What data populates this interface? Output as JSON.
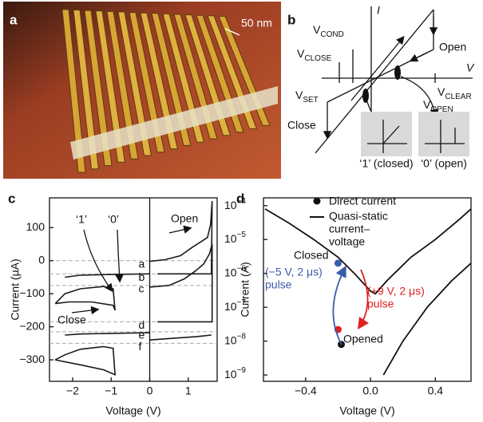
{
  "panel_a": {
    "label": "a",
    "scale": "50 nm"
  },
  "panel_b": {
    "label": "b",
    "axis_i": "I",
    "axis_v": "V",
    "v_cond": {
      "main": "V",
      "sub": "COND"
    },
    "v_close": {
      "main": "V",
      "sub": "CLOSE"
    },
    "v_set": {
      "main": "V",
      "sub": "SET"
    },
    "v_clear": {
      "main": "V",
      "sub": "CLEAR"
    },
    "v_open": {
      "main": "V",
      "sub": "OPEN"
    },
    "open": "Open",
    "close": "Close",
    "inset_1": "‘1’ (closed)",
    "inset_0": "‘0’ (open)"
  },
  "chart_data": [
    {
      "type": "line",
      "panel": "c",
      "xlabel": "Voltage (V)",
      "ylabel": "Current (μA)",
      "xlim": [
        -2.6,
        1.75
      ],
      "ylim": [
        -365,
        190
      ],
      "xticks": [
        {
          "value": -2,
          "label": "−2"
        },
        {
          "value": -1,
          "label": "−1"
        },
        0,
        1
      ],
      "yticks": [
        100,
        0,
        {
          "value": -100,
          "label": "−100"
        },
        {
          "value": -200,
          "label": "−200"
        },
        {
          "value": -300,
          "label": "−300"
        }
      ],
      "reference_lines": {
        "values": [
          0,
          -40,
          -75,
          -185,
          -215,
          -250
        ],
        "labels": [
          "a",
          "b",
          "c",
          "d",
          "e",
          "f"
        ]
      },
      "annotations": [
        "‘1’",
        "‘0’",
        "Open",
        "Close"
      ],
      "series": [
        {
          "color": "#1a1a1a",
          "x": [
            -2.2,
            -1.8,
            -1.0,
            0
          ],
          "values": [
            -50,
            -44,
            -42,
            -40
          ]
        },
        {
          "color": "#1a1a1a",
          "x": [
            -2.45,
            -2.2,
            -1.8,
            -1.2,
            -0.95,
            -0.9,
            -0.95,
            -1.5,
            -2.1,
            -2.45
          ],
          "values": [
            -130,
            -100,
            -85,
            -78,
            -85,
            -150,
            -135,
            -125,
            -125,
            -130
          ]
        },
        {
          "color": "#1a1a1a",
          "x": [
            -2.2,
            -1.8,
            -1.0,
            0
          ],
          "values": [
            -225,
            -222,
            -220,
            -218
          ]
        },
        {
          "color": "#1a1a1a",
          "x": [
            -2.45,
            -2.2,
            -1.8,
            -1.2,
            -0.95,
            -0.9,
            -1.2,
            -1.8,
            -2.45
          ],
          "values": [
            -300,
            -285,
            -268,
            -260,
            -265,
            -345,
            -330,
            -315,
            -300
          ]
        },
        {
          "color": "#1a1a1a",
          "x": [
            0,
            0.4,
            0.8,
            1.1,
            1.3,
            1.5,
            1.58,
            1.62,
            1.6,
            1.0,
            0.2
          ],
          "values": [
            -2,
            3,
            15,
            40,
            55,
            70,
            110,
            180,
            -40,
            -40,
            -40
          ]
        },
        {
          "color": "#1a1a1a",
          "x": [
            0,
            0.5,
            0.9,
            1.2,
            1.4,
            1.55,
            1.62,
            1.62,
            0.8,
            0.2
          ],
          "values": [
            -80,
            -75,
            -55,
            -30,
            -10,
            20,
            50,
            -185,
            -185,
            -185
          ]
        },
        {
          "color": "#1a1a1a",
          "x": [
            0,
            0.6,
            1.2,
            1.6
          ],
          "values": [
            -240,
            -235,
            -230,
            -225
          ]
        }
      ]
    },
    {
      "type": "scatter",
      "panel": "d",
      "xlabel": "Voltage (V)",
      "ylabel": "Current (A)",
      "log_y": true,
      "xlim": [
        -0.66,
        0.62
      ],
      "ylim": [
        6.5e-10,
        0.00017
      ],
      "xticks": [
        {
          "value": -0.4,
          "label": "−0.4"
        },
        {
          "value": 0,
          "label": "0.0"
        },
        0.4
      ],
      "yticks": [
        {
          "value": 0.0001,
          "label": "10",
          "exp": "−4"
        },
        {
          "value": 1e-05,
          "label": "10",
          "exp": "−5"
        },
        {
          "value": 1e-06,
          "label": "10",
          "exp": "−6"
        },
        {
          "value": 1e-07,
          "label": "10",
          "exp": "−7"
        },
        {
          "value": 1e-08,
          "label": "10",
          "exp": "−8"
        },
        {
          "value": 1e-09,
          "label": "10",
          "exp": "−9"
        }
      ],
      "annotations": {
        "closed": "Closed",
        "opened": "Opened",
        "pulse_neg": [
          "(−5 V, 2 μs)",
          "pulse"
        ],
        "pulse_pos": [
          "(+9 V, 2 μs)",
          "pulse"
        ]
      },
      "series": [
        {
          "name": "Direct current",
          "type": "scatter",
          "x": [
            -0.18,
            -0.2,
            -0.2
          ],
          "values": [
            8e-09,
            2e-06,
            2.2e-08
          ],
          "colors": [
            "#111111",
            "#3b5bab",
            "#e02020"
          ]
        },
        {
          "name": [
            "Quasi-static",
            "current–",
            "voltage"
          ],
          "type": "line",
          "color": "#111111",
          "x": [
            -0.65,
            -0.5,
            -0.35,
            -0.2,
            -0.1,
            0,
            0.03,
            0.1,
            0.25,
            0.4,
            0.55,
            0.62,
            null,
            0.08,
            0.2,
            0.35,
            0.5,
            0.62
          ],
          "values": [
            8e-05,
            3e-05,
            1e-05,
            3e-06,
            1e-06,
            3e-07,
            2.5e-07,
            6e-07,
            3e-06,
            1e-05,
            4e-05,
            8e-05,
            null,
            1e-09,
            1e-08,
            1e-07,
            6e-07,
            2e-06
          ]
        }
      ]
    }
  ]
}
